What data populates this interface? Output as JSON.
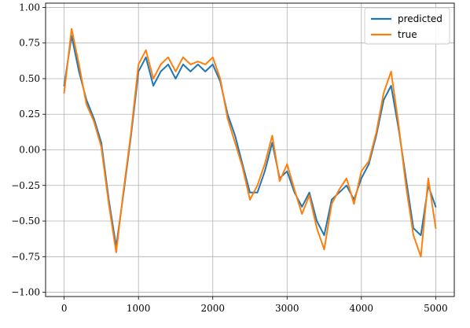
{
  "chart_data": {
    "type": "line",
    "title": "",
    "xlabel": "",
    "ylabel": "",
    "xlim": [
      -250,
      5250
    ],
    "ylim": [
      -1.03,
      1.03
    ],
    "xticks": [
      0,
      1000,
      2000,
      3000,
      4000,
      5000
    ],
    "xtick_labels": [
      "0",
      "1000",
      "2000",
      "3000",
      "4000",
      "5000"
    ],
    "yticks": [
      -1.0,
      -0.75,
      -0.5,
      -0.25,
      0.0,
      0.25,
      0.5,
      0.75,
      1.0
    ],
    "ytick_labels": [
      "−1.00",
      "−0.75",
      "−0.50",
      "−0.25",
      "0.00",
      "0.25",
      "0.50",
      "0.75",
      "1.00"
    ],
    "grid": true,
    "legend_position": "top-right",
    "x": [
      0,
      100,
      200,
      300,
      400,
      500,
      600,
      700,
      800,
      900,
      1000,
      1100,
      1200,
      1300,
      1400,
      1500,
      1600,
      1700,
      1800,
      1900,
      2000,
      2100,
      2200,
      2300,
      2400,
      2500,
      2600,
      2700,
      2800,
      2900,
      3000,
      3100,
      3200,
      3300,
      3400,
      3500,
      3600,
      3700,
      3800,
      3900,
      4000,
      4100,
      4200,
      4300,
      4400,
      4500,
      4600,
      4700,
      4800,
      4900,
      5000
    ],
    "series": [
      {
        "name": "predicted",
        "color": "#1f77b4",
        "values": [
          0.45,
          0.8,
          0.55,
          0.35,
          0.22,
          0.05,
          -0.35,
          -0.68,
          -0.3,
          0.1,
          0.55,
          0.65,
          0.45,
          0.55,
          0.6,
          0.5,
          0.6,
          0.55,
          0.6,
          0.55,
          0.6,
          0.48,
          0.25,
          0.1,
          -0.1,
          -0.3,
          -0.3,
          -0.15,
          0.05,
          -0.2,
          -0.15,
          -0.3,
          -0.4,
          -0.3,
          -0.5,
          -0.6,
          -0.35,
          -0.3,
          -0.25,
          -0.35,
          -0.2,
          -0.1,
          0.1,
          0.35,
          0.45,
          0.15,
          -0.2,
          -0.55,
          -0.6,
          -0.25,
          -0.4
        ]
      },
      {
        "name": "true",
        "color": "#ff7f0e",
        "values": [
          0.4,
          0.85,
          0.6,
          0.32,
          0.2,
          0.02,
          -0.38,
          -0.72,
          -0.28,
          0.12,
          0.6,
          0.7,
          0.5,
          0.6,
          0.65,
          0.55,
          0.65,
          0.6,
          0.62,
          0.6,
          0.65,
          0.5,
          0.22,
          0.05,
          -0.12,
          -0.35,
          -0.25,
          -0.1,
          0.1,
          -0.22,
          -0.1,
          -0.28,
          -0.45,
          -0.32,
          -0.55,
          -0.7,
          -0.38,
          -0.28,
          -0.2,
          -0.38,
          -0.15,
          -0.08,
          0.12,
          0.4,
          0.55,
          0.18,
          -0.25,
          -0.6,
          -0.75,
          -0.2,
          -0.55
        ]
      }
    ]
  }
}
